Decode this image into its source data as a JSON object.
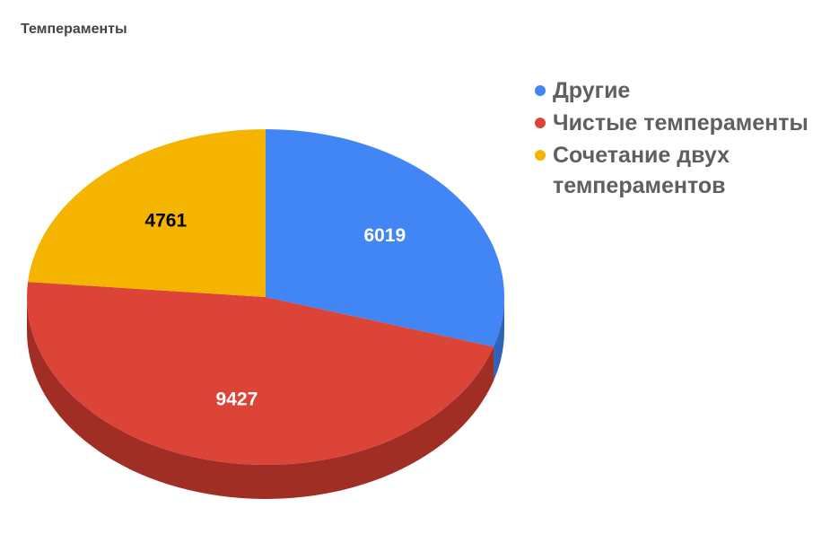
{
  "chart_data": {
    "type": "pie",
    "title": "Темпераменты",
    "slices": [
      {
        "label": "Другие",
        "value": 6019,
        "color": "#4285F4",
        "side_color": "#2E63B8",
        "label_color": "#ffffff"
      },
      {
        "label": "Чистые темпераменты",
        "value": 9427,
        "color": "#DB4437",
        "side_color": "#A02E25",
        "label_color": "#ffffff"
      },
      {
        "label": "Сочетание двух темпераментов",
        "value": 4761,
        "color": "#F4B400",
        "side_color": "#B88700",
        "label_color": "#000000"
      }
    ],
    "legend_position": "right",
    "style": "3d"
  }
}
